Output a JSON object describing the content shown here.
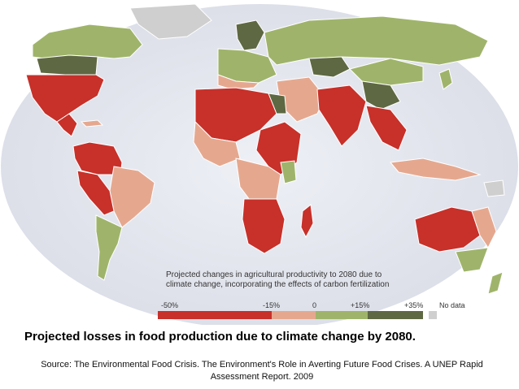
{
  "legend": {
    "title_line1": "Projected changes in agricultural productivity to 2080 due to",
    "title_line2": "climate change, incorporating the effects of carbon fertilization",
    "ticks": [
      "-50%",
      "-15%",
      "0",
      "+15%",
      "+35%"
    ],
    "no_data_label": "No data"
  },
  "caption": "Projected losses in food production due to climate change by 2080.",
  "source": "Source: The Environmental Food Crisis. The Environment's Role in Averting Future Food Crises. A UNEP Rapid Assessment Report. 2009",
  "colors": {
    "ocean": "#e4e6ee",
    "strong_loss": "#c8302a",
    "moderate_loss": "#e5a88f",
    "small_gain": "#9fb46a",
    "strong_gain": "#5e6842",
    "no_data": "#cfcfcf",
    "border": "#ffffff"
  }
}
